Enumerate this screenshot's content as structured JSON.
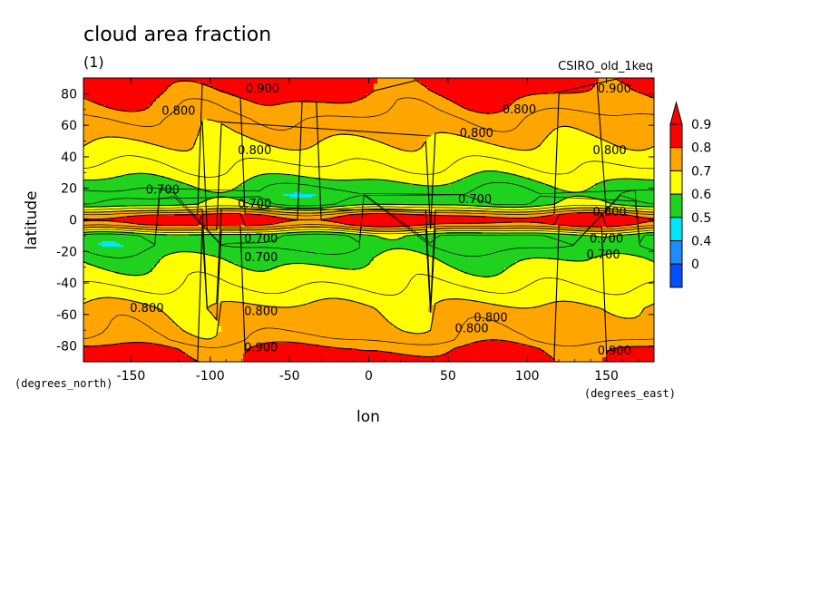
{
  "chart_data": {
    "type": "heatmap",
    "title": "cloud area fraction",
    "subtitle": "(1)",
    "model_label": "CSIRO_old_1keq",
    "xlabel": "lon",
    "ylabel": "latitude",
    "x_units": "(degrees_east)",
    "y_units": "(degrees_north)",
    "xlim": [
      -180,
      180
    ],
    "ylim": [
      -90,
      90
    ],
    "x_ticks": [
      -150,
      -100,
      -50,
      0,
      50,
      100,
      150
    ],
    "y_ticks": [
      -80,
      -60,
      -40,
      -20,
      0,
      20,
      40,
      60,
      80
    ],
    "grid": false,
    "colorbar": {
      "placement": "right",
      "levels": [
        "0",
        "0.4",
        "0.5",
        "0.6",
        "0.7",
        "0.8",
        "0.9"
      ],
      "colors": [
        "#0050ff",
        "#1e8cff",
        "#00e6ff",
        "#1ed21e",
        "#ffff00",
        "#ffa500",
        "#ff0000"
      ],
      "over_arrow_color": "#ff0000"
    },
    "zonal_profile": {
      "lat": [
        -90,
        -82,
        -76,
        -70,
        -64,
        -56,
        -50,
        -40,
        -30,
        -24,
        -16,
        -10,
        -6,
        -3,
        0,
        3,
        6,
        10,
        16,
        22,
        30,
        40,
        50,
        56,
        64,
        70,
        76,
        82,
        90
      ],
      "value": [
        0.93,
        0.91,
        0.85,
        0.83,
        0.82,
        0.81,
        0.78,
        0.74,
        0.71,
        0.69,
        0.64,
        0.66,
        0.8,
        0.9,
        0.95,
        0.9,
        0.8,
        0.68,
        0.65,
        0.68,
        0.73,
        0.77,
        0.8,
        0.82,
        0.84,
        0.87,
        0.89,
        0.92,
        0.94
      ]
    },
    "contour_labels": [
      {
        "text": "0.900",
        "lon": -67,
        "lat": 83
      },
      {
        "text": "0.900",
        "lon": 155,
        "lat": 83
      },
      {
        "text": "0.800",
        "lon": -120,
        "lat": 69
      },
      {
        "text": "0.800",
        "lon": 95,
        "lat": 70
      },
      {
        "text": "0.800",
        "lon": 68,
        "lat": 55
      },
      {
        "text": "0.800",
        "lon": -72,
        "lat": 44
      },
      {
        "text": "0.800",
        "lon": 152,
        "lat": 44
      },
      {
        "text": "0.700",
        "lon": -130,
        "lat": 19
      },
      {
        "text": "0.700",
        "lon": 67,
        "lat": 13
      },
      {
        "text": "0.700",
        "lon": -72,
        "lat": 10
      },
      {
        "text": "0.800",
        "lon": 152,
        "lat": 5
      },
      {
        "text": "0.700",
        "lon": -68,
        "lat": -12
      },
      {
        "text": "0.700",
        "lon": 150,
        "lat": -12
      },
      {
        "text": "0.700",
        "lon": -68,
        "lat": -24
      },
      {
        "text": "0.700",
        "lon": 148,
        "lat": -22
      },
      {
        "text": "0.800",
        "lon": -140,
        "lat": -56
      },
      {
        "text": "0.800",
        "lon": -68,
        "lat": -58
      },
      {
        "text": "0.800",
        "lon": 77,
        "lat": -62
      },
      {
        "text": "0.800",
        "lon": 65,
        "lat": -69
      },
      {
        "text": "0.900",
        "lon": -68,
        "lat": -81
      },
      {
        "text": "0.900",
        "lon": 155,
        "lat": -83
      }
    ]
  }
}
